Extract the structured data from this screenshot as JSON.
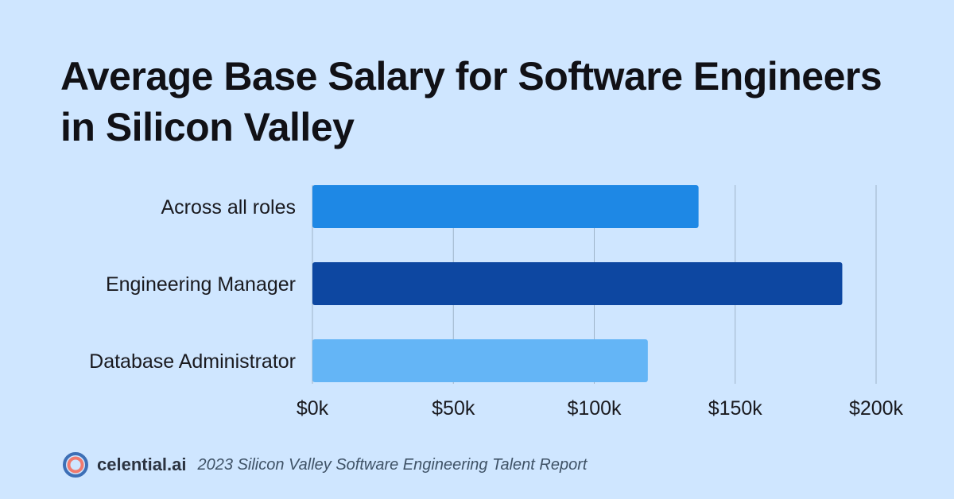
{
  "title": "Average Base Salary for Software Engineers in Silicon Valley",
  "chart_data": {
    "type": "bar",
    "orientation": "horizontal",
    "title": "Average Base Salary for Software Engineers in Silicon Valley",
    "categories": [
      "Across all roles",
      "Engineering Manager",
      "Database Administrator"
    ],
    "values": [
      137000,
      188000,
      119000
    ],
    "bar_colors": [
      "#1e88e5",
      "#0d47a1",
      "#64b5f6"
    ],
    "xlim": [
      0,
      200000
    ],
    "x_ticks": [
      0,
      50000,
      100000,
      150000,
      200000
    ],
    "x_tick_labels": [
      "$0k",
      "$50k",
      "$100k",
      "$150k",
      "$200k"
    ],
    "grid": true,
    "legend": "none"
  },
  "footer": {
    "brand": "celential.ai",
    "report": "2023 Silicon Valley Software Engineering Talent Report",
    "logo_icon": "target-ring-icon"
  },
  "colors": {
    "background": "#cfe6ff",
    "grid": "#9fb4c9"
  }
}
